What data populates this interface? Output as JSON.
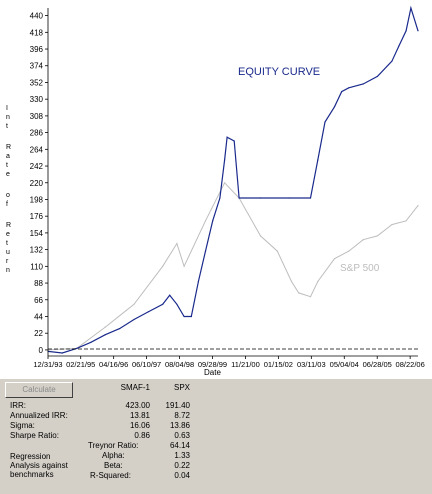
{
  "chart_data": {
    "type": "line",
    "title": "EQUITY CURVE",
    "xlabel": "Date",
    "ylabel": "Int Rate of Return",
    "ylim": [
      -8,
      450
    ],
    "yticks": [
      0,
      22,
      44,
      66,
      88,
      110,
      132,
      154,
      176,
      198,
      220,
      242,
      264,
      286,
      308,
      330,
      352,
      374,
      396,
      418,
      440
    ],
    "xtick_labels": [
      "12/31/93",
      "02/21/95",
      "04/16/96",
      "06/10/97",
      "08/04/98",
      "09/28/99",
      "11/21/00",
      "01/15/02",
      "03/11/03",
      "05/04/04",
      "06/28/05",
      "08/22/06"
    ],
    "xrange": [
      "12/31/93",
      "11/30/06"
    ],
    "series": [
      {
        "name": "",
        "color": "#1a2a8c",
        "x": [
          "1994-01-01",
          "1994-07-01",
          "1995-01-01",
          "1995-07-01",
          "1996-01-01",
          "1996-07-01",
          "1997-01-01",
          "1997-07-01",
          "1998-01-01",
          "1998-04-01",
          "1998-07-01",
          "1998-10-01",
          "1999-01-01",
          "1999-04-01",
          "1999-07-01",
          "1999-10-01",
          "2000-01-01",
          "2000-03-01",
          "2000-04-01",
          "2000-07-01",
          "2000-09-01",
          "2001-06-01",
          "2002-06-01",
          "2003-03-01",
          "2003-06-01",
          "2003-09-01",
          "2004-01-01",
          "2004-04-01",
          "2004-07-01",
          "2005-01-01",
          "2005-07-01",
          "2006-01-01",
          "2006-04-01",
          "2006-07-01",
          "2006-09-01",
          "2006-11-30"
        ],
        "values": [
          -2,
          -4,
          2,
          10,
          20,
          28,
          40,
          50,
          60,
          72,
          60,
          44,
          44,
          90,
          130,
          170,
          200,
          250,
          280,
          275,
          200,
          200,
          200,
          200,
          250,
          300,
          320,
          340,
          345,
          350,
          360,
          380,
          400,
          420,
          450,
          420
        ]
      },
      {
        "name": "S&P 500",
        "color": "#bdbdbd",
        "x": [
          "1994-01-01",
          "1995-01-01",
          "1996-01-01",
          "1997-01-01",
          "1998-01-01",
          "1998-07-01",
          "1998-10-01",
          "1999-07-01",
          "2000-03-01",
          "2000-09-01",
          "2001-06-01",
          "2002-01-01",
          "2002-07-01",
          "2002-10-01",
          "2003-03-01",
          "2003-06-01",
          "2004-01-01",
          "2004-07-01",
          "2005-01-01",
          "2005-07-01",
          "2006-01-01",
          "2006-07-01",
          "2006-11-30"
        ],
        "values": [
          0,
          2,
          30,
          60,
          110,
          140,
          110,
          170,
          220,
          200,
          150,
          130,
          90,
          75,
          70,
          90,
          120,
          130,
          145,
          150,
          165,
          170,
          190
        ]
      }
    ]
  },
  "stats": {
    "button_label": "Calculate",
    "columns": [
      "SMAF-1",
      "SPX"
    ],
    "rows": [
      {
        "label": "IRR:",
        "smaf": "423.00",
        "spx": "191.40"
      },
      {
        "label": "Annualized IRR:",
        "smaf": "13.81",
        "spx": "8.72"
      },
      {
        "label": "Sigma:",
        "smaf": "16.06",
        "spx": "13.86"
      },
      {
        "label": "Sharpe Ratio:",
        "smaf": "0.86",
        "spx": "0.63"
      }
    ],
    "regression_label": "Regression Analysis against benchmarks",
    "regression_rows": [
      {
        "label": "Treynor Ratio:",
        "value": "64.14"
      },
      {
        "label": "Alpha:",
        "value": "1.33"
      },
      {
        "label": "Beta:",
        "value": "0.22"
      },
      {
        "label": "R-Squared:",
        "value": "0.04"
      }
    ]
  }
}
